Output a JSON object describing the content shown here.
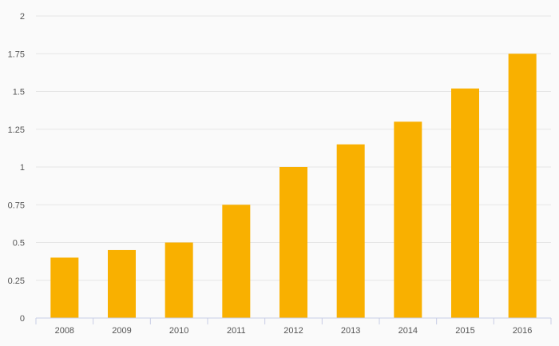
{
  "chart_data": {
    "type": "bar",
    "categories": [
      "2008",
      "2009",
      "2010",
      "2011",
      "2012",
      "2013",
      "2014",
      "2015",
      "2016"
    ],
    "values": [
      0.4,
      0.45,
      0.5,
      0.75,
      1.0,
      1.15,
      1.3,
      1.52,
      1.75
    ],
    "title": "",
    "xlabel": "",
    "ylabel": "",
    "ylim": [
      0,
      2
    ],
    "yticks": [
      "0",
      "0.25",
      "0.5",
      "0.75",
      "1",
      "1.25",
      "1.5",
      "1.75",
      "2"
    ],
    "grid": true,
    "legend": "none",
    "bar_color": "#f9b000",
    "grid_color": "#e6e6e6",
    "axis_color": "#c8cde6"
  }
}
